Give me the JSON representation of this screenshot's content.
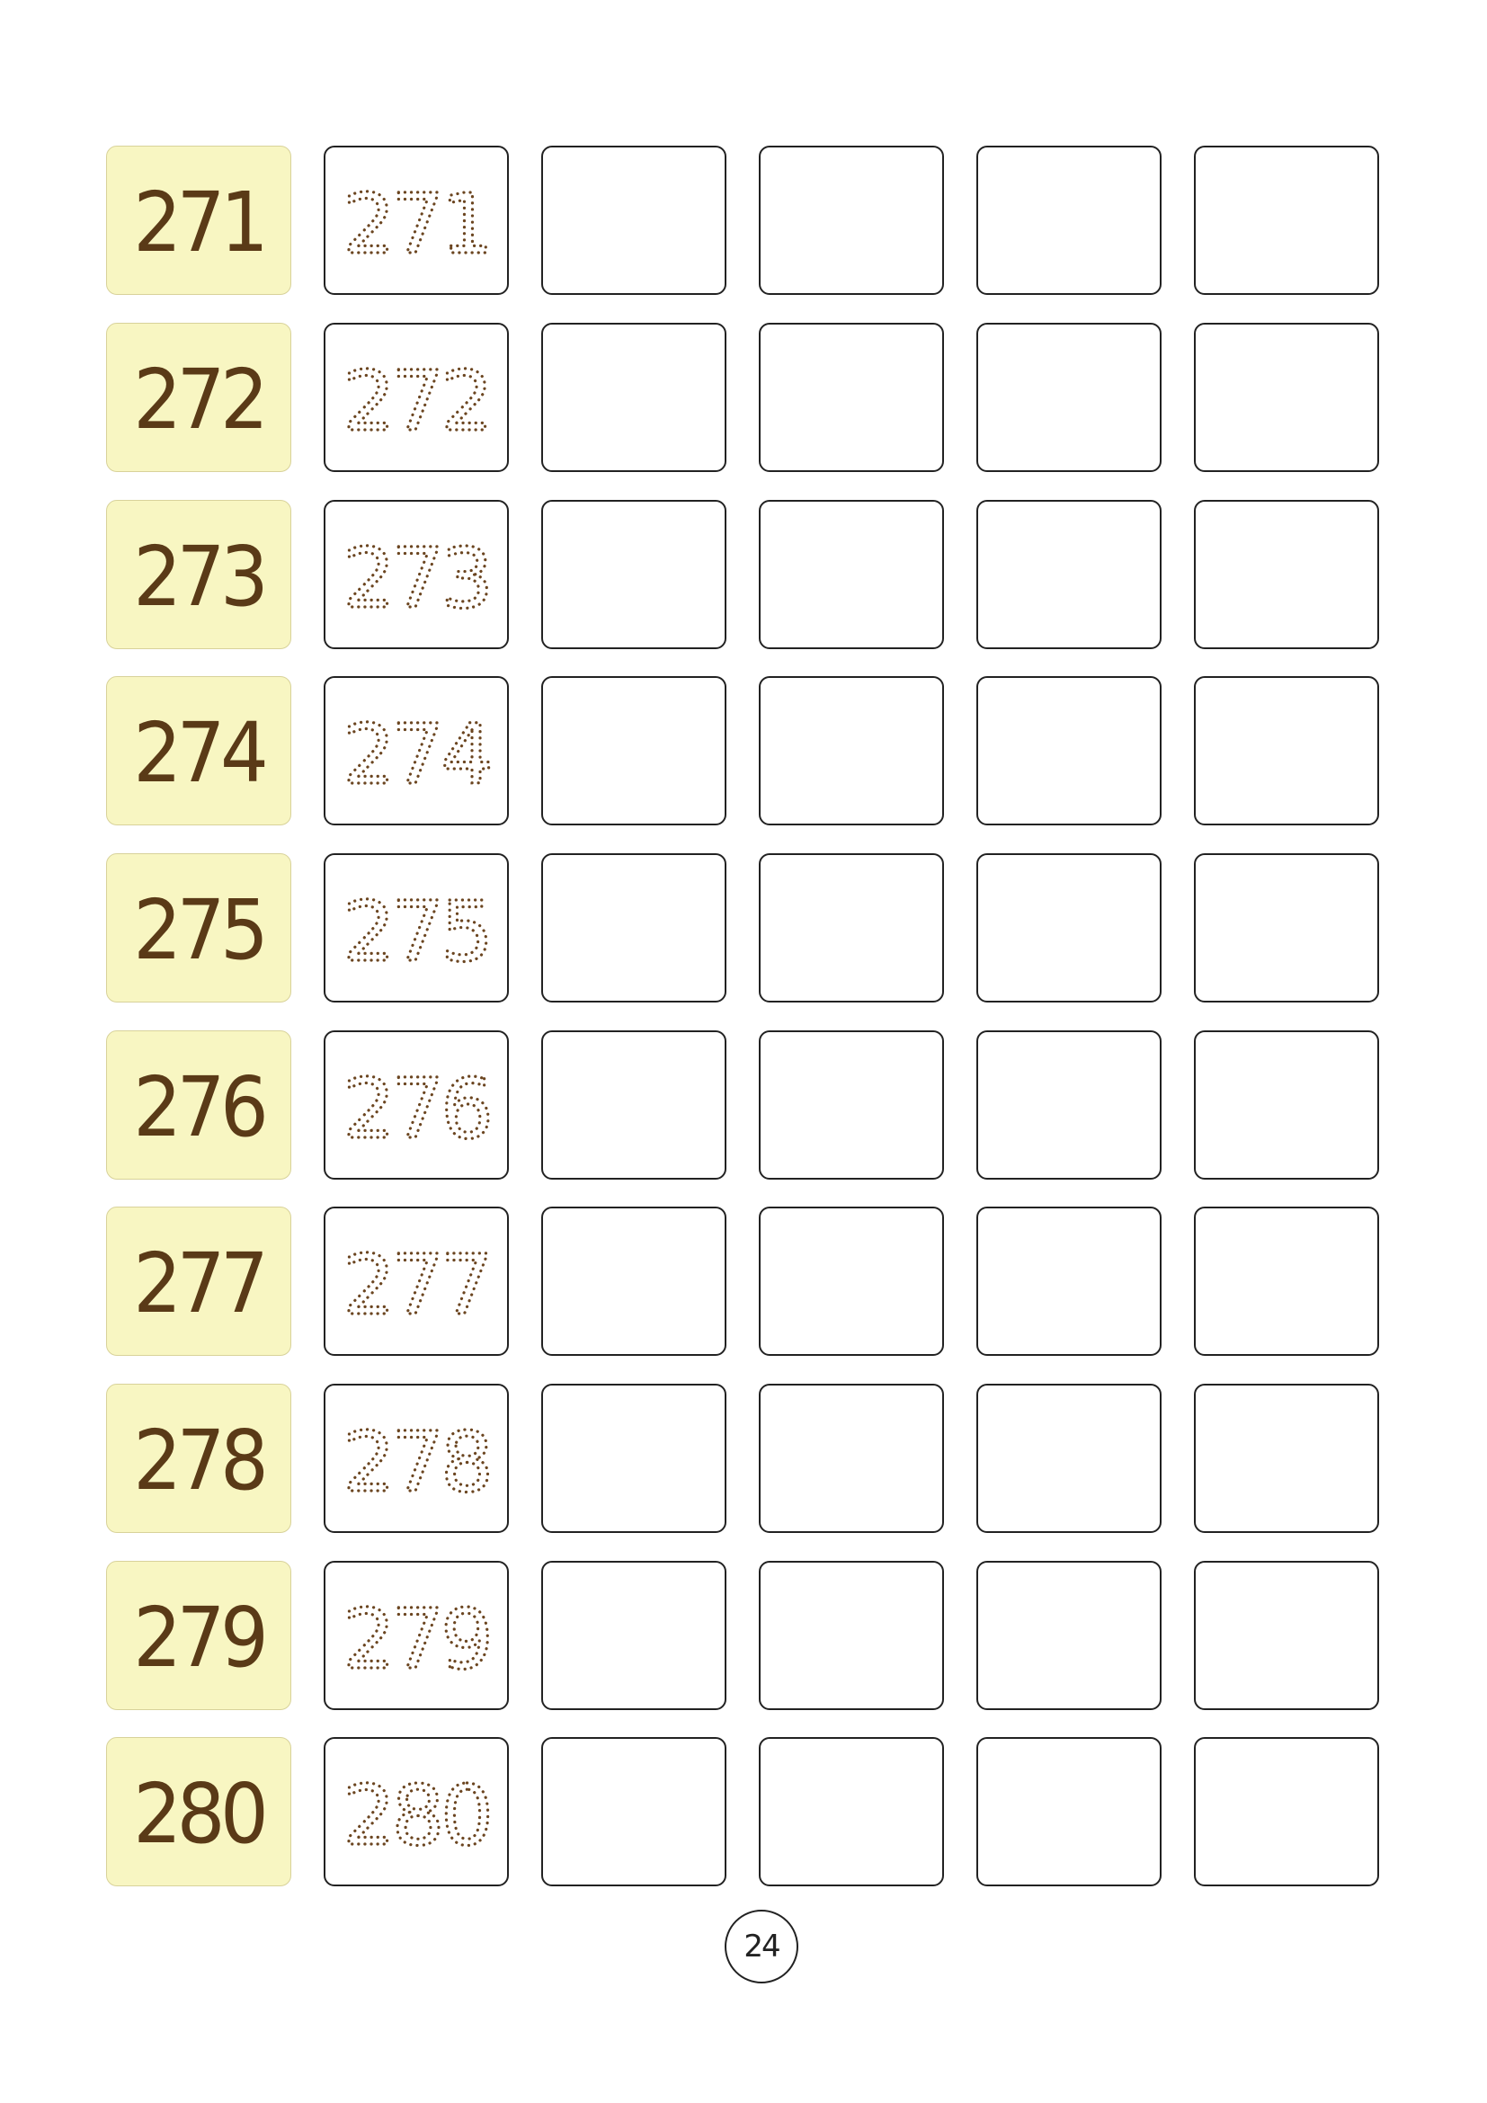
{
  "worksheet": {
    "rows": [
      {
        "number": "271",
        "trace": "271"
      },
      {
        "number": "272",
        "trace": "272"
      },
      {
        "number": "273",
        "trace": "273"
      },
      {
        "number": "274",
        "trace": "274"
      },
      {
        "number": "275",
        "trace": "275"
      },
      {
        "number": "276",
        "trace": "276"
      },
      {
        "number": "277",
        "trace": "277"
      },
      {
        "number": "278",
        "trace": "278"
      },
      {
        "number": "279",
        "trace": "279"
      },
      {
        "number": "280",
        "trace": "280"
      }
    ],
    "blank_boxes_per_row": 4
  },
  "footer": {
    "page_number": "24"
  },
  "colors": {
    "number_fill": "#f8f6c2",
    "number_text": "#5a3a17",
    "trace_dots": "#6b4520",
    "box_border": "#222222"
  }
}
